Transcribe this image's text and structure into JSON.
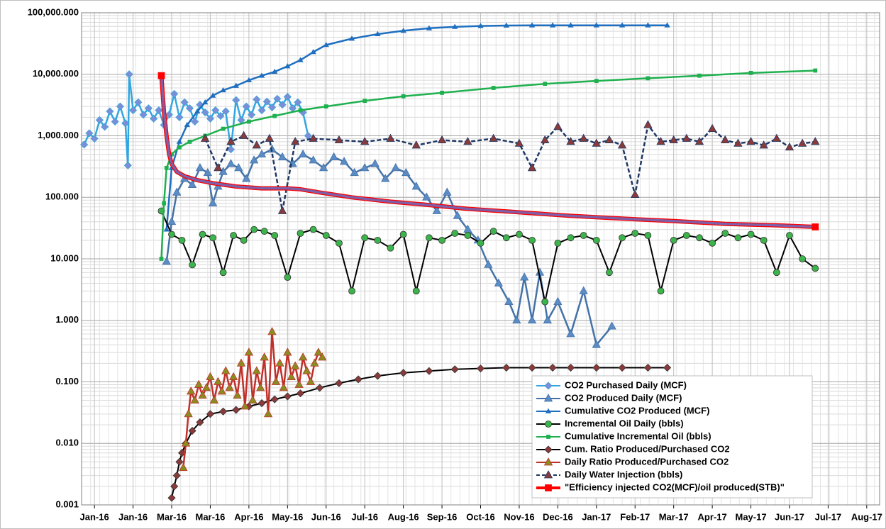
{
  "chart_data": {
    "type": "line",
    "yscale": "log",
    "ylim": [
      0.001,
      100000
    ],
    "yticks": [
      {
        "value": 0.001,
        "label": "0.001"
      },
      {
        "value": 0.01,
        "label": "0.010"
      },
      {
        "value": 0.1,
        "label": "0.100"
      },
      {
        "value": 1,
        "label": "1.000"
      },
      {
        "value": 10,
        "label": "10.000"
      },
      {
        "value": 100,
        "label": "100.000"
      },
      {
        "value": 1000,
        "label": "1,000.000"
      },
      {
        "value": 10000,
        "label": "10,000.000"
      },
      {
        "value": 100000,
        "label": "100,000.000"
      }
    ],
    "xlim": [
      42360,
      42980
    ],
    "xticks": [
      {
        "value": 42370,
        "label": "Jan-16"
      },
      {
        "value": 42400,
        "label": "Jan-16"
      },
      {
        "value": 42430,
        "label": "Mar-16"
      },
      {
        "value": 42460,
        "label": "Mar-16"
      },
      {
        "value": 42490,
        "label": "Apr-16"
      },
      {
        "value": 42520,
        "label": "May-16"
      },
      {
        "value": 42550,
        "label": "Jun-16"
      },
      {
        "value": 42580,
        "label": "Jul-16"
      },
      {
        "value": 42610,
        "label": "Aug-16"
      },
      {
        "value": 42640,
        "label": "Sep-16"
      },
      {
        "value": 42670,
        "label": "Oct-16"
      },
      {
        "value": 42700,
        "label": "Nov-16"
      },
      {
        "value": 42730,
        "label": "Dec-16"
      },
      {
        "value": 42760,
        "label": "Jan-17"
      },
      {
        "value": 42790,
        "label": "Feb-17"
      },
      {
        "value": 42820,
        "label": "Mar-17"
      },
      {
        "value": 42850,
        "label": "Apr-17"
      },
      {
        "value": 42880,
        "label": "May-17"
      },
      {
        "value": 42910,
        "label": "Jun-17"
      },
      {
        "value": 42940,
        "label": "Jul-17"
      },
      {
        "value": 42970,
        "label": "Aug-17"
      }
    ],
    "grid": true,
    "minor_grid": true,
    "legend": "lower right",
    "series": [
      {
        "name": "CO2 Purchased Daily (MCF)",
        "color": "#33a6e0",
        "marker": "diamond",
        "marker_color": "#7d8ed6",
        "dash": false,
        "x": [
          42362,
          42366,
          42370,
          42374,
          42378,
          42382,
          42386,
          42390,
          42394,
          42396,
          42397,
          42400,
          42404,
          42408,
          42412,
          42416,
          42420,
          42424,
          42428,
          42432,
          42436,
          42440,
          42444,
          42448,
          42452,
          42456,
          42460,
          42464,
          42468,
          42472,
          42476,
          42480,
          42484,
          42488,
          42492,
          42496,
          42500,
          42504,
          42508,
          42512,
          42516,
          42520,
          42524,
          42528,
          42532,
          42536
        ],
        "values": [
          720,
          1100,
          900,
          1800,
          1400,
          2500,
          1700,
          3000,
          1600,
          330,
          10000,
          2600,
          3500,
          2200,
          2800,
          1900,
          2600,
          1500,
          2200,
          4800,
          2000,
          3500,
          2800,
          1700,
          3200,
          2400,
          1900,
          2600,
          2100,
          2500,
          600,
          3800,
          1800,
          3000,
          2200,
          3900,
          2600,
          3600,
          2900,
          4000,
          3200,
          4300,
          2800,
          3500,
          2400,
          1000
        ]
      },
      {
        "name": "CO2 Produced Daily (MCF)",
        "color": "#4472a8",
        "marker": "triangle",
        "marker_color": "#5b8cc4",
        "dash": false,
        "x": [
          42426,
          42430,
          42434,
          42440,
          42446,
          42452,
          42458,
          42462,
          42466,
          42470,
          42476,
          42482,
          42488,
          42494,
          42500,
          42508,
          42516,
          42524,
          42532,
          42540,
          42548,
          42556,
          42564,
          42572,
          42580,
          42588,
          42596,
          42604,
          42612,
          42620,
          42628,
          42636,
          42644,
          42652,
          42660,
          42668,
          42676,
          42684,
          42692,
          42698,
          42704,
          42710,
          42716,
          42722,
          42730,
          42740,
          42750,
          42760,
          42772
        ],
        "values": [
          9,
          40,
          120,
          200,
          160,
          300,
          250,
          80,
          150,
          260,
          350,
          300,
          200,
          400,
          500,
          600,
          450,
          350,
          500,
          400,
          300,
          450,
          380,
          250,
          300,
          350,
          200,
          300,
          250,
          150,
          100,
          60,
          120,
          50,
          30,
          20,
          8,
          4,
          2,
          1,
          5,
          1,
          6,
          1,
          2,
          0.6,
          3,
          0.4,
          0.8
        ]
      },
      {
        "name": "Cumulative CO2 Produced (MCF)",
        "color": "#1f6fc0",
        "marker": "small-triangle",
        "marker_color": "#1f6fc0",
        "dash": false,
        "x": [
          42426,
          42430,
          42436,
          42442,
          42450,
          42456,
          42462,
          42470,
          42480,
          42490,
          42500,
          42510,
          42520,
          42530,
          42540,
          42550,
          42570,
          42590,
          42610,
          42630,
          42650,
          42670,
          42690,
          42710,
          42726,
          42740,
          42760,
          42780,
          42800,
          42815
        ],
        "values": [
          30,
          300,
          800,
          1500,
          2500,
          3500,
          4500,
          5500,
          6500,
          8000,
          9500,
          11000,
          13500,
          17000,
          23000,
          30000,
          38000,
          45000,
          51000,
          56000,
          59000,
          61000,
          62000,
          62500,
          62500,
          62500,
          62500,
          62500,
          62500,
          62500
        ]
      },
      {
        "name": "Incremental Oil Daily (bbls)",
        "color": "#000000",
        "marker": "circle",
        "marker_color": "#3cb44b",
        "dash": false,
        "x": [
          42422,
          42430,
          42438,
          42446,
          42454,
          42462,
          42470,
          42478,
          42486,
          42494,
          42502,
          42510,
          42520,
          42530,
          42540,
          42550,
          42560,
          42570,
          42580,
          42590,
          42600,
          42610,
          42620,
          42630,
          42640,
          42650,
          42660,
          42670,
          42680,
          42690,
          42700,
          42710,
          42720,
          42730,
          42740,
          42750,
          42760,
          42770,
          42780,
          42790,
          42800,
          42810,
          42820,
          42830,
          42840,
          42850,
          42860,
          42870,
          42880,
          42890,
          42900,
          42910,
          42920,
          42930
        ],
        "values": [
          60,
          25,
          20,
          8,
          25,
          22,
          6,
          24,
          20,
          30,
          28,
          24,
          5,
          26,
          30,
          24,
          18,
          3,
          22,
          20,
          15,
          25,
          3,
          22,
          20,
          26,
          24,
          18,
          28,
          22,
          25,
          20,
          2,
          18,
          22,
          24,
          20,
          6,
          22,
          26,
          24,
          3,
          20,
          24,
          22,
          18,
          26,
          22,
          25,
          20,
          6,
          24,
          10,
          7
        ]
      },
      {
        "name": "Cumulative Incremental Oil (bbls)",
        "color": "#1fb04f",
        "marker": "small-square",
        "marker_color": "#1fb04f",
        "dash": false,
        "x": [
          42422,
          42424,
          42426,
          42430,
          42436,
          42444,
          42456,
          42470,
          42490,
          42510,
          42530,
          42550,
          42580,
          42610,
          42640,
          42680,
          42720,
          42760,
          42800,
          42840,
          42880,
          42930
        ],
        "values": [
          10,
          80,
          300,
          500,
          650,
          800,
          1000,
          1300,
          1700,
          2100,
          2600,
          3000,
          3700,
          4400,
          5000,
          6000,
          7000,
          7800,
          8600,
          9500,
          10500,
          11500
        ]
      },
      {
        "name": "Cum. Ratio Produced/Purchased CO2",
        "color": "#000000",
        "marker": "diamond",
        "marker_color": "#8b3a3a",
        "dash": false,
        "x": [
          42430,
          42432,
          42434,
          42436,
          42438,
          42441,
          42446,
          42452,
          42460,
          42470,
          42480,
          42490,
          42500,
          42510,
          42520,
          42530,
          42545,
          42560,
          42575,
          42590,
          42610,
          42630,
          42650,
          42670,
          42690,
          42710,
          42726,
          42740,
          42760,
          42780,
          42800,
          42815
        ],
        "values": [
          0.0013,
          0.002,
          0.003,
          0.005,
          0.007,
          0.01,
          0.016,
          0.022,
          0.03,
          0.033,
          0.035,
          0.04,
          0.045,
          0.052,
          0.058,
          0.065,
          0.08,
          0.095,
          0.11,
          0.125,
          0.14,
          0.15,
          0.16,
          0.165,
          0.17,
          0.17,
          0.17,
          0.17,
          0.17,
          0.17,
          0.17,
          0.17
        ]
      },
      {
        "name": "Daily Ratio Produced/Purchased CO2",
        "color": "#c0302a",
        "marker": "triangle",
        "marker_color": "#8b8b20",
        "dash": false,
        "x": [
          42439,
          42441,
          42443,
          42445,
          42448,
          42451,
          42454,
          42457,
          42460,
          42463,
          42466,
          42469,
          42472,
          42475,
          42478,
          42481,
          42484,
          42487,
          42490,
          42493,
          42496,
          42499,
          42502,
          42505,
          42508,
          42511,
          42514,
          42517,
          42520,
          42523,
          42526,
          42529,
          42532,
          42535,
          42538,
          42541,
          42544,
          42547
        ],
        "values": [
          0.004,
          0.01,
          0.03,
          0.07,
          0.05,
          0.09,
          0.06,
          0.08,
          0.12,
          0.05,
          0.1,
          0.07,
          0.15,
          0.08,
          0.12,
          0.06,
          0.2,
          0.04,
          0.3,
          0.05,
          0.15,
          0.08,
          0.25,
          0.03,
          0.65,
          0.1,
          0.2,
          0.08,
          0.3,
          0.12,
          0.18,
          0.09,
          0.25,
          0.15,
          0.1,
          0.2,
          0.3,
          0.25
        ]
      },
      {
        "name": "Daily Water Injection (bbls)",
        "color": "#1f3864",
        "marker": "triangle",
        "marker_color": "#8b3a3a",
        "dash": true,
        "x": [
          42456,
          42466,
          42476,
          42486,
          42496,
          42506,
          42516,
          42526,
          42540,
          42560,
          42580,
          42600,
          42620,
          42640,
          42660,
          42680,
          42700,
          42710,
          42720,
          42730,
          42740,
          42750,
          42760,
          42770,
          42780,
          42790,
          42800,
          42810,
          42820,
          42830,
          42840,
          42850,
          42860,
          42870,
          42880,
          42890,
          42900,
          42910,
          42920,
          42930
        ],
        "values": [
          900,
          300,
          800,
          1000,
          700,
          900,
          60,
          800,
          900,
          850,
          800,
          900,
          700,
          850,
          800,
          900,
          750,
          300,
          850,
          1400,
          800,
          900,
          750,
          850,
          700,
          110,
          1500,
          800,
          850,
          900,
          800,
          1300,
          850,
          750,
          800,
          700,
          900,
          650,
          750,
          800
        ]
      },
      {
        "name": "\"Efficiency injected CO2(MCF)/oil produced(STB)\"",
        "color": "#ff0000",
        "core_color": "#7e5fa8",
        "marker": "square",
        "marker_color": "#ff0000",
        "dash": false,
        "x": [
          42422,
          42424,
          42426,
          42428,
          42430,
          42434,
          42440,
          42450,
          42462,
          42480,
          42500,
          42520,
          42530,
          42545,
          42570,
          42600,
          42630,
          42660,
          42700,
          42740,
          42780,
          42820,
          42860,
          42900,
          42930
        ],
        "values": [
          9500,
          2500,
          1000,
          500,
          350,
          260,
          220,
          190,
          170,
          150,
          140,
          140,
          135,
          120,
          100,
          85,
          75,
          65,
          57,
          50,
          45,
          41,
          37,
          35,
          33
        ]
      }
    ]
  }
}
